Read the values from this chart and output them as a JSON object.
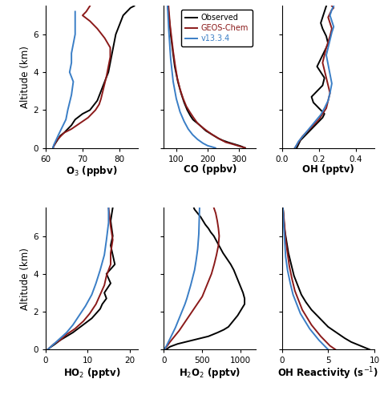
{
  "fig_width": 4.74,
  "fig_height": 4.93,
  "dpi": 100,
  "legend_labels": [
    "Observed",
    "GEOS-Chem",
    "v13.3.4"
  ],
  "colors": {
    "observed": "black",
    "geos": "#8B1A1A",
    "v13": "#3A7EC6"
  },
  "panels": [
    {
      "xlabel": "O$_3$ (ppbv)",
      "xlim": [
        60,
        85
      ],
      "xticks": [
        60,
        70,
        80
      ],
      "ylim": [
        0,
        7.5
      ],
      "yticks": [
        0,
        2,
        4,
        6
      ],
      "obs_x": [
        62,
        62.2,
        62.5,
        63,
        63.5,
        64,
        65,
        66,
        67,
        68,
        70,
        72,
        74,
        75,
        76,
        77,
        77.5,
        78,
        78.5,
        79,
        80,
        81,
        82,
        83,
        84
      ],
      "obs_y": [
        0,
        0.1,
        0.2,
        0.35,
        0.5,
        0.65,
        0.8,
        1.0,
        1.2,
        1.5,
        1.8,
        2.0,
        2.5,
        3.0,
        3.5,
        4.0,
        4.5,
        5.0,
        5.5,
        6.0,
        6.5,
        7.0,
        7.2,
        7.4,
        7.5
      ],
      "geos_x": [
        62,
        62.2,
        62.5,
        63,
        64,
        65,
        67,
        68.5,
        70,
        71.5,
        72.5,
        73.5,
        74.5,
        75,
        75.5,
        76,
        76.5,
        77,
        77.5,
        77.5,
        76,
        74,
        72,
        70,
        71,
        72
      ],
      "geos_y": [
        0,
        0.1,
        0.2,
        0.4,
        0.6,
        0.8,
        1.0,
        1.2,
        1.4,
        1.6,
        1.8,
        2.0,
        2.3,
        2.6,
        3.0,
        3.4,
        3.8,
        4.3,
        4.8,
        5.3,
        5.8,
        6.3,
        6.7,
        7.0,
        7.2,
        7.5
      ],
      "v13_x": [
        62,
        62.2,
        62.8,
        63.5,
        64.5,
        65.5,
        66,
        67,
        67.5,
        66.5,
        67,
        67,
        67.5,
        68,
        68,
        68
      ],
      "v13_y": [
        0,
        0.15,
        0.4,
        0.7,
        1.1,
        1.5,
        2.0,
        2.8,
        3.5,
        4.0,
        4.5,
        5.0,
        5.5,
        6.0,
        6.5,
        7.2
      ]
    },
    {
      "xlabel": "CO (ppbv)",
      "xlim": [
        60,
        355
      ],
      "xticks": [
        100,
        200,
        300
      ],
      "ylim": [
        0,
        7.5
      ],
      "yticks": [
        0,
        2,
        4,
        6
      ],
      "obs_x": [
        320,
        305,
        285,
        265,
        248,
        235,
        225,
        215,
        205,
        195,
        188,
        182,
        175,
        168,
        160,
        153,
        145,
        135,
        125,
        115,
        105,
        95,
        88,
        82,
        78,
        75,
        72
      ],
      "obs_y": [
        0,
        0.1,
        0.2,
        0.3,
        0.4,
        0.5,
        0.6,
        0.7,
        0.8,
        0.9,
        1.0,
        1.1,
        1.2,
        1.3,
        1.4,
        1.5,
        1.7,
        2.0,
        2.4,
        2.9,
        3.5,
        4.3,
        5.2,
        6.0,
        6.7,
        7.2,
        7.5
      ],
      "geos_x": [
        320,
        300,
        280,
        258,
        235,
        215,
        198,
        182,
        168,
        155,
        143,
        132,
        122,
        112,
        103,
        96,
        90,
        85,
        80,
        77,
        75
      ],
      "geos_y": [
        0,
        0.1,
        0.2,
        0.3,
        0.5,
        0.7,
        0.9,
        1.1,
        1.3,
        1.6,
        1.9,
        2.2,
        2.6,
        3.1,
        3.7,
        4.4,
        5.1,
        5.8,
        6.5,
        7.1,
        7.5
      ],
      "v13_x": [
        225,
        215,
        200,
        185,
        168,
        152,
        138,
        125,
        112,
        100,
        90,
        82,
        76,
        72
      ],
      "v13_y": [
        0,
        0.05,
        0.12,
        0.25,
        0.45,
        0.7,
        1.0,
        1.4,
        1.9,
        2.6,
        3.5,
        4.7,
        6.2,
        7.5
      ]
    },
    {
      "xlabel": "OH (pptv)",
      "xlim": [
        0.0,
        0.5
      ],
      "xticks": [
        0.0,
        0.2,
        0.4
      ],
      "ylim": [
        0,
        7.5
      ],
      "yticks": [
        0,
        2,
        4,
        6
      ],
      "obs_x": [
        0.08,
        0.09,
        0.1,
        0.12,
        0.14,
        0.16,
        0.18,
        0.2,
        0.22,
        0.23,
        0.21,
        0.19,
        0.17,
        0.16,
        0.19,
        0.22,
        0.23,
        0.21,
        0.19,
        0.21,
        0.23,
        0.25,
        0.24,
        0.22,
        0.21,
        0.22,
        0.23,
        0.24
      ],
      "obs_y": [
        0,
        0.2,
        0.4,
        0.6,
        0.8,
        1.0,
        1.2,
        1.4,
        1.6,
        1.8,
        2.0,
        2.2,
        2.4,
        2.7,
        3.0,
        3.3,
        3.7,
        4.0,
        4.3,
        4.7,
        5.1,
        5.5,
        5.9,
        6.3,
        6.6,
        6.9,
        7.2,
        7.5
      ],
      "geos_x": [
        0.07,
        0.09,
        0.11,
        0.14,
        0.17,
        0.2,
        0.22,
        0.24,
        0.25,
        0.26,
        0.25,
        0.24,
        0.23,
        0.22,
        0.23,
        0.24,
        0.25,
        0.26,
        0.27,
        0.26,
        0.25,
        0.26,
        0.27,
        0.28,
        0.27
      ],
      "geos_y": [
        0,
        0.3,
        0.6,
        0.9,
        1.2,
        1.5,
        1.8,
        2.1,
        2.5,
        2.9,
        3.3,
        3.7,
        4.1,
        4.5,
        4.9,
        5.3,
        5.6,
        5.9,
        6.3,
        6.6,
        6.9,
        7.1,
        7.3,
        7.4,
        7.5
      ],
      "v13_x": [
        0.07,
        0.09,
        0.12,
        0.15,
        0.18,
        0.21,
        0.23,
        0.25,
        0.26,
        0.27,
        0.26,
        0.25,
        0.24,
        0.25,
        0.26,
        0.27,
        0.28,
        0.27,
        0.26,
        0.27,
        0.28
      ],
      "v13_y": [
        0,
        0.35,
        0.7,
        1.05,
        1.4,
        1.75,
        2.1,
        2.5,
        2.9,
        3.4,
        3.9,
        4.4,
        4.9,
        5.3,
        5.7,
        6.1,
        6.4,
        6.7,
        7.0,
        7.3,
        7.5
      ]
    },
    {
      "xlabel": "HO$_2$ (pptv)",
      "xlim": [
        0,
        22
      ],
      "xticks": [
        0,
        10,
        20
      ],
      "ylim": [
        0,
        7.5
      ],
      "yticks": [
        0,
        2,
        4,
        6
      ],
      "obs_x": [
        0.5,
        1.0,
        2.0,
        3.5,
        5.0,
        6.5,
        8.0,
        9.5,
        11.0,
        12.0,
        13.0,
        13.5,
        14.5,
        14.0,
        15.5,
        14.5,
        16.5,
        16.0,
        15.5,
        16.0,
        15.5,
        16.0
      ],
      "obs_y": [
        0,
        0.1,
        0.25,
        0.5,
        0.7,
        0.9,
        1.15,
        1.4,
        1.65,
        1.9,
        2.15,
        2.4,
        2.7,
        3.0,
        3.5,
        4.0,
        4.5,
        5.0,
        5.5,
        6.0,
        6.8,
        7.5
      ],
      "geos_x": [
        0.5,
        1.0,
        2.0,
        3.5,
        5.0,
        7.0,
        9.0,
        10.5,
        12.0,
        13.0,
        14.0,
        14.5,
        15.5,
        15.5,
        16.0,
        15.5,
        15.0
      ],
      "geos_y": [
        0,
        0.1,
        0.3,
        0.5,
        0.8,
        1.1,
        1.5,
        1.9,
        2.4,
        2.9,
        3.4,
        3.9,
        4.5,
        5.1,
        5.8,
        6.5,
        7.5
      ],
      "v13_x": [
        0.5,
        1.0,
        2.0,
        3.5,
        5.0,
        6.5,
        8.0,
        9.5,
        11.0,
        12.0,
        13.0,
        14.0,
        14.5,
        15.0,
        15.0
      ],
      "v13_y": [
        0,
        0.1,
        0.3,
        0.6,
        0.9,
        1.3,
        1.8,
        2.3,
        2.9,
        3.5,
        4.2,
        5.0,
        5.8,
        6.7,
        7.5
      ]
    },
    {
      "xlabel": "H$_2$O$_2$ (pptv)",
      "xlim": [
        0,
        1200
      ],
      "xticks": [
        0,
        500,
        1000
      ],
      "ylim": [
        0,
        7.5
      ],
      "yticks": [
        0,
        2,
        4,
        6
      ],
      "obs_x": [
        30,
        80,
        180,
        380,
        580,
        700,
        780,
        840,
        880,
        920,
        960,
        990,
        1020,
        1050,
        1050,
        1030,
        1000,
        970,
        940,
        910,
        870,
        820,
        770,
        730,
        690,
        650,
        610,
        580,
        540,
        510,
        480,
        460,
        440,
        420,
        400,
        390
      ],
      "obs_y": [
        0,
        0.15,
        0.3,
        0.5,
        0.7,
        0.9,
        1.05,
        1.2,
        1.4,
        1.6,
        1.8,
        2.0,
        2.2,
        2.4,
        2.7,
        3.0,
        3.3,
        3.6,
        3.9,
        4.2,
        4.5,
        4.8,
        5.1,
        5.4,
        5.7,
        6.0,
        6.2,
        6.4,
        6.6,
        6.8,
        7.0,
        7.1,
        7.2,
        7.3,
        7.4,
        7.5
      ],
      "geos_x": [
        15,
        25,
        45,
        80,
        120,
        160,
        200,
        250,
        300,
        350,
        400,
        450,
        500,
        540,
        580,
        620,
        655,
        685,
        710,
        720,
        710,
        695,
        675,
        650
      ],
      "geos_y": [
        0,
        0.1,
        0.2,
        0.4,
        0.6,
        0.8,
        1.0,
        1.3,
        1.6,
        1.9,
        2.2,
        2.5,
        2.8,
        3.2,
        3.6,
        4.0,
        4.5,
        5.0,
        5.5,
        6.0,
        6.4,
        6.8,
        7.2,
        7.5
      ],
      "v13_x": [
        10,
        20,
        35,
        60,
        90,
        120,
        150,
        175,
        200,
        225,
        250,
        275,
        300,
        325,
        350,
        375,
        400,
        420,
        440,
        455,
        465
      ],
      "v13_y": [
        0,
        0.1,
        0.2,
        0.4,
        0.65,
        0.9,
        1.15,
        1.4,
        1.65,
        1.9,
        2.15,
        2.4,
        2.7,
        3.05,
        3.4,
        3.8,
        4.2,
        4.7,
        5.3,
        6.1,
        7.5
      ]
    },
    {
      "xlabel": "OH Reactivity (s$^{-1}$)",
      "xlim": [
        0,
        10
      ],
      "xticks": [
        0,
        5,
        10
      ],
      "ylim": [
        0,
        7.5
      ],
      "yticks": [
        0,
        2,
        4,
        6
      ],
      "obs_x": [
        9.5,
        8.5,
        7.5,
        6.8,
        6.2,
        5.6,
        5.0,
        4.4,
        3.8,
        3.2,
        2.6,
        2.1,
        1.7,
        1.3,
        1.0,
        0.7,
        0.5,
        0.3,
        0.2,
        0.15,
        0.1
      ],
      "obs_y": [
        0,
        0.2,
        0.4,
        0.6,
        0.8,
        1.0,
        1.2,
        1.5,
        1.8,
        2.1,
        2.5,
        2.9,
        3.4,
        3.9,
        4.5,
        5.1,
        5.7,
        6.3,
        6.8,
        7.2,
        7.5
      ],
      "geos_x": [
        5.8,
        5.2,
        4.7,
        4.2,
        3.7,
        3.2,
        2.7,
        2.2,
        1.8,
        1.4,
        1.1,
        0.8,
        0.6,
        0.4,
        0.3,
        0.2,
        0.1
      ],
      "geos_y": [
        0,
        0.2,
        0.45,
        0.7,
        1.0,
        1.3,
        1.7,
        2.1,
        2.6,
        3.1,
        3.7,
        4.4,
        5.1,
        5.8,
        6.4,
        7.0,
        7.5
      ],
      "v13_x": [
        5.0,
        4.5,
        4.0,
        3.5,
        3.0,
        2.5,
        2.0,
        1.6,
        1.2,
        0.9,
        0.6,
        0.4,
        0.3,
        0.2,
        0.1
      ],
      "v13_y": [
        0,
        0.25,
        0.5,
        0.8,
        1.1,
        1.5,
        1.9,
        2.4,
        2.9,
        3.5,
        4.2,
        4.9,
        5.7,
        6.5,
        7.5
      ]
    }
  ]
}
